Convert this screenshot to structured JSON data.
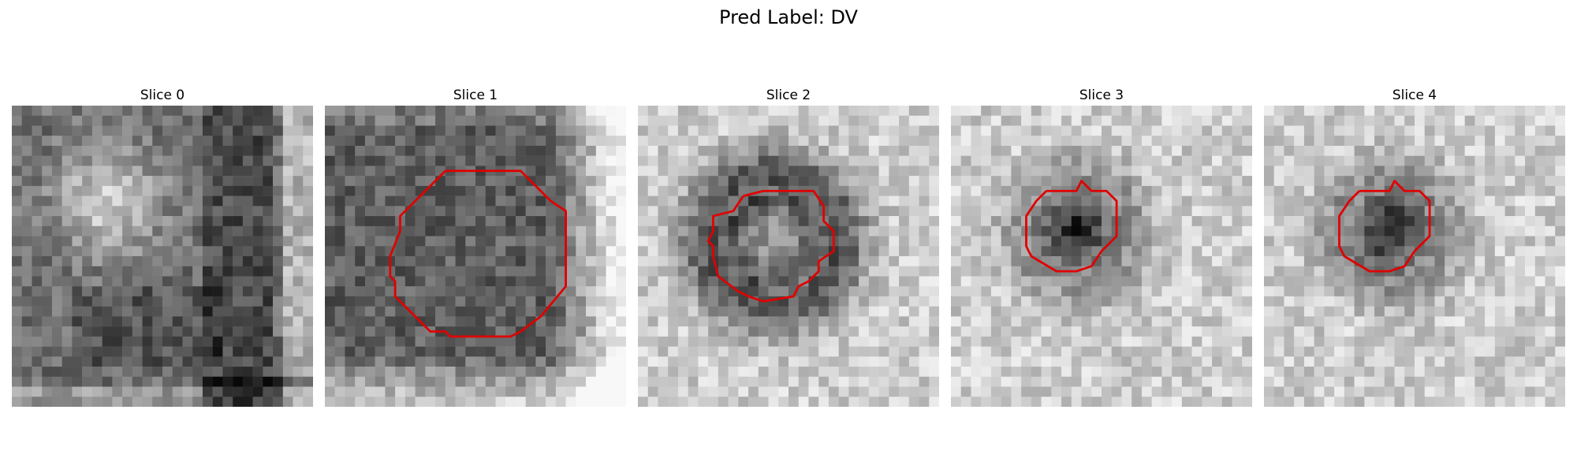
{
  "figure": {
    "title": "Pred Label: DV"
  },
  "panels": [
    {
      "title": "Slice 0",
      "has_contour": false
    },
    {
      "title": "Slice 1",
      "has_contour": true
    },
    {
      "title": "Slice 2",
      "has_contour": true
    },
    {
      "title": "Slice 3",
      "has_contour": true
    },
    {
      "title": "Slice 4",
      "has_contour": true
    }
  ],
  "colors": {
    "contour": "#e00000",
    "background": "#ffffff"
  }
}
